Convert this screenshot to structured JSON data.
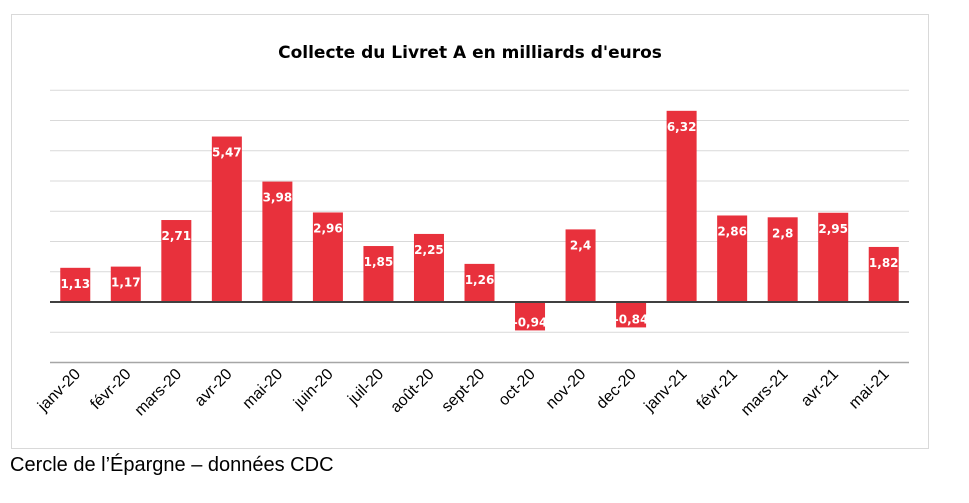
{
  "source": "Cercle de l’Épargne – données CDC",
  "colors": {
    "bar": "#e8313c",
    "grid": "#d9d9d9",
    "axis": "#404040",
    "label": "#ffffff"
  },
  "chart_data": {
    "type": "bar",
    "title": "Collecte du Livret A en milliards d'euros",
    "xlabel": "",
    "ylabel": "",
    "categories": [
      "janv-20",
      "févr-20",
      "mars-20",
      "avr-20",
      "mai-20",
      "juin-20",
      "juil-20",
      "août-20",
      "sept-20",
      "oct-20",
      "nov-20",
      "dec-20",
      "janv-21",
      "févr-21",
      "mars-21",
      "avr-21",
      "mai-21"
    ],
    "values": [
      1.13,
      1.17,
      2.71,
      5.47,
      3.98,
      2.96,
      1.85,
      2.25,
      1.26,
      -0.94,
      2.4,
      -0.84,
      6.32,
      2.86,
      2.8,
      2.95,
      1.82
    ],
    "data_labels": [
      "1,13",
      "1,17",
      "2,71",
      "5,47",
      "3,98",
      "2,96",
      "1,85",
      "2,25",
      "1,26",
      "-0,94",
      "2,4",
      "-0,84",
      "6,32",
      "2,86",
      "2,8",
      "2,95",
      "1,82"
    ],
    "ylim": [
      -2,
      7
    ],
    "grid": true,
    "legend": false
  }
}
